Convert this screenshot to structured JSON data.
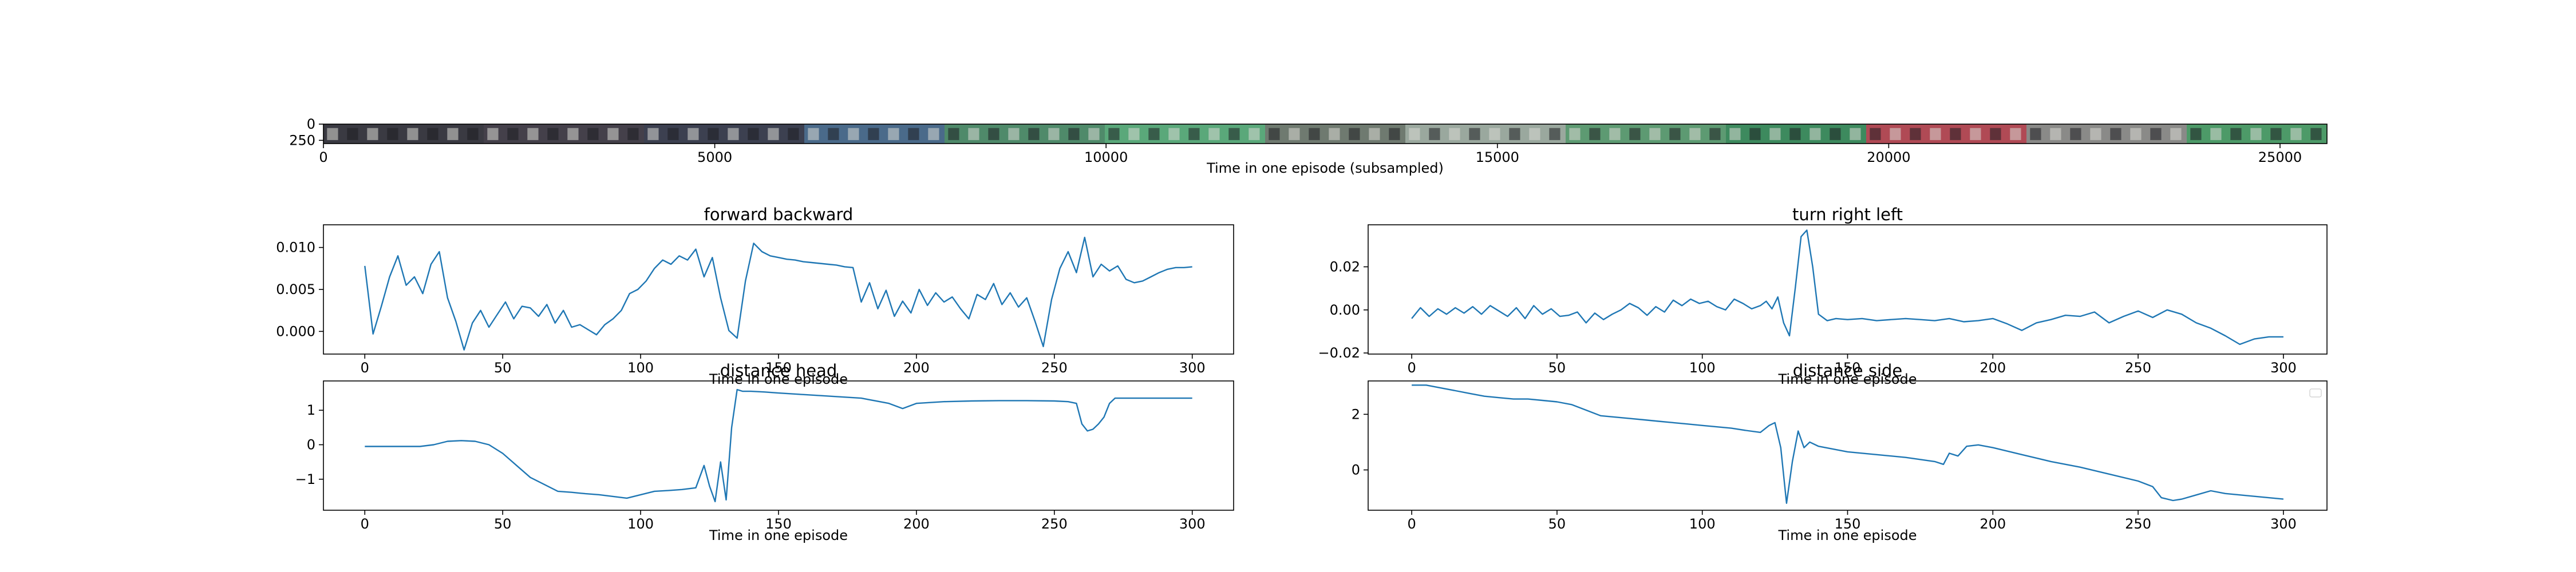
{
  "figure": {
    "background": "#ffffff",
    "line_color": "#1f77b4"
  },
  "chart_data": [
    {
      "type": "image-strip",
      "title": "",
      "xlabel": "Time in one episode (subsampled)",
      "ylabel": "",
      "xlim": [
        0,
        25600
      ],
      "ylim": [
        300,
        0
      ],
      "xticks": [
        0,
        5000,
        10000,
        15000,
        20000,
        25000
      ],
      "yticks": [
        0,
        250
      ],
      "frame_count": 100,
      "frame_colors": [
        "#3a3a42",
        "#44404a",
        "#3c4050",
        "#4a6a8a",
        "#4f8a6a",
        "#5aa87a",
        "#6f7a70",
        "#9aa89e",
        "#5d9a72",
        "#3d8a5e",
        "#b04a55",
        "#8a8a88",
        "#4d9a68"
      ]
    },
    {
      "type": "line",
      "title": "forward backward",
      "xlabel": "Time in one episode",
      "ylabel": "",
      "xlim": [
        -15,
        315
      ],
      "ylim": [
        -0.0027,
        0.0127
      ],
      "xticks": [
        0,
        50,
        100,
        150,
        200,
        250,
        300
      ],
      "yticks": [
        0.0,
        0.005,
        0.01
      ],
      "ytick_labels": [
        "0.000",
        "0.005",
        "0.010"
      ],
      "series": [
        {
          "x": [
            0,
            3,
            6,
            9,
            12,
            15,
            18,
            21,
            24,
            27,
            30,
            33,
            36,
            39,
            42,
            45,
            48,
            51,
            54,
            57,
            60,
            63,
            66,
            69,
            72,
            75,
            78,
            81,
            84,
            87,
            90,
            93,
            96,
            99,
            102,
            105,
            108,
            111,
            114,
            117,
            120,
            123,
            126,
            129,
            132,
            135,
            138,
            141,
            144,
            147,
            150,
            153,
            156,
            159,
            162,
            165,
            168,
            171,
            174,
            177,
            180,
            183,
            186,
            189,
            192,
            195,
            198,
            201,
            204,
            207,
            210,
            213,
            216,
            219,
            222,
            225,
            228,
            231,
            234,
            237,
            240,
            243,
            246,
            249,
            252,
            255,
            258,
            261,
            264,
            267,
            270,
            273,
            276,
            279,
            282,
            285,
            288,
            291,
            294,
            297,
            300
          ],
          "y": [
            0.0078,
            -0.0003,
            0.003,
            0.0065,
            0.009,
            0.0055,
            0.0065,
            0.0045,
            0.008,
            0.0095,
            0.004,
            0.0012,
            -0.0022,
            0.001,
            0.0025,
            0.0005,
            0.002,
            0.0035,
            0.0015,
            0.003,
            0.0028,
            0.0018,
            0.0032,
            0.001,
            0.0025,
            0.0005,
            0.0008,
            0.0002,
            -0.0004,
            0.0008,
            0.0015,
            0.0025,
            0.0045,
            0.005,
            0.006,
            0.0075,
            0.0085,
            0.008,
            0.009,
            0.0085,
            0.0098,
            0.0065,
            0.0088,
            0.004,
            0.0001,
            -0.0008,
            0.006,
            0.0105,
            0.0095,
            0.009,
            0.0088,
            0.0086,
            0.0085,
            0.0083,
            0.0082,
            0.0081,
            0.008,
            0.0079,
            0.0077,
            0.0076,
            0.0035,
            0.0058,
            0.0027,
            0.0049,
            0.0018,
            0.0036,
            0.0022,
            0.005,
            0.0031,
            0.0046,
            0.0035,
            0.0041,
            0.0027,
            0.0015,
            0.0044,
            0.0038,
            0.0057,
            0.0032,
            0.0046,
            0.0029,
            0.004,
            0.0012,
            -0.0018,
            0.0038,
            0.0075,
            0.0095,
            0.007,
            0.0112,
            0.0065,
            0.008,
            0.0072,
            0.0078,
            0.0062,
            0.0058,
            0.006,
            0.0065,
            0.007,
            0.0074,
            0.0076,
            0.0076,
            0.0077
          ]
        }
      ]
    },
    {
      "type": "line",
      "title": "turn right left",
      "xlabel": "Time in one episode",
      "ylabel": "",
      "xlim": [
        -15,
        315
      ],
      "ylim": [
        -0.0205,
        0.0395
      ],
      "xticks": [
        0,
        50,
        100,
        150,
        200,
        250,
        300
      ],
      "yticks": [
        -0.02,
        0.0,
        0.02
      ],
      "ytick_labels": [
        "−0.02",
        "0.00",
        "0.02"
      ],
      "series": [
        {
          "x": [
            0,
            3,
            6,
            9,
            12,
            15,
            18,
            21,
            24,
            27,
            30,
            33,
            36,
            39,
            42,
            45,
            48,
            51,
            54,
            57,
            60,
            63,
            66,
            69,
            72,
            75,
            78,
            81,
            84,
            87,
            90,
            93,
            96,
            99,
            102,
            105,
            108,
            111,
            114,
            117,
            120,
            122,
            124,
            126,
            128,
            130,
            132,
            134,
            136,
            138,
            140,
            143,
            146,
            150,
            155,
            160,
            165,
            170,
            175,
            180,
            185,
            190,
            195,
            200,
            205,
            210,
            215,
            220,
            225,
            230,
            235,
            240,
            245,
            250,
            255,
            260,
            265,
            270,
            275,
            280,
            285,
            290,
            295,
            300
          ],
          "y": [
            -0.004,
            0.001,
            -0.003,
            0.0005,
            -0.002,
            0.001,
            -0.0015,
            0.0015,
            -0.002,
            0.002,
            -0.0005,
            -0.003,
            0.001,
            -0.004,
            0.002,
            -0.002,
            0.0005,
            -0.003,
            -0.0025,
            -0.001,
            -0.006,
            -0.0015,
            -0.0045,
            -0.002,
            0.0,
            0.003,
            0.001,
            -0.0025,
            0.0015,
            -0.001,
            0.0045,
            0.002,
            0.005,
            0.003,
            0.004,
            0.0015,
            0.0,
            0.005,
            0.003,
            0.0005,
            0.002,
            0.004,
            0.0005,
            0.006,
            -0.006,
            -0.012,
            0.01,
            0.034,
            0.037,
            0.02,
            -0.002,
            -0.005,
            -0.004,
            -0.0045,
            -0.004,
            -0.005,
            -0.0045,
            -0.004,
            -0.0045,
            -0.005,
            -0.004,
            -0.0055,
            -0.005,
            -0.004,
            -0.0065,
            -0.0095,
            -0.006,
            -0.0045,
            -0.0025,
            -0.003,
            -0.001,
            -0.006,
            -0.003,
            -0.0005,
            -0.0035,
            0.0,
            -0.002,
            -0.006,
            -0.0085,
            -0.012,
            -0.016,
            -0.0135,
            -0.0125,
            -0.0125
          ]
        }
      ]
    },
    {
      "type": "line",
      "title": "distance head",
      "xlabel": "Time in one episode",
      "ylabel": "",
      "xlim": [
        -15,
        315
      ],
      "ylim": [
        -1.9,
        1.85
      ],
      "xticks": [
        0,
        50,
        100,
        150,
        200,
        250,
        300
      ],
      "yticks": [
        -1,
        0,
        1
      ],
      "ytick_labels": [
        "−1",
        "0",
        "1"
      ],
      "series": [
        {
          "x": [
            0,
            10,
            20,
            25,
            30,
            35,
            40,
            45,
            50,
            55,
            60,
            65,
            70,
            75,
            80,
            85,
            90,
            95,
            100,
            105,
            110,
            115,
            120,
            123,
            125,
            127,
            129,
            131,
            133,
            135,
            137,
            140,
            145,
            150,
            160,
            170,
            180,
            190,
            195,
            200,
            210,
            220,
            230,
            240,
            250,
            255,
            258,
            260,
            262,
            264,
            266,
            268,
            270,
            272,
            275,
            280,
            290,
            300
          ],
          "y": [
            -0.05,
            -0.05,
            -0.05,
            0.0,
            0.1,
            0.12,
            0.1,
            0.0,
            -0.25,
            -0.6,
            -0.95,
            -1.15,
            -1.35,
            -1.38,
            -1.42,
            -1.45,
            -1.5,
            -1.55,
            -1.45,
            -1.35,
            -1.33,
            -1.3,
            -1.25,
            -0.6,
            -1.2,
            -1.65,
            -0.5,
            -1.6,
            0.5,
            1.6,
            1.55,
            1.55,
            1.53,
            1.5,
            1.45,
            1.4,
            1.35,
            1.2,
            1.05,
            1.2,
            1.25,
            1.27,
            1.28,
            1.28,
            1.27,
            1.25,
            1.2,
            0.6,
            0.4,
            0.45,
            0.6,
            0.8,
            1.2,
            1.35,
            1.35,
            1.35,
            1.35,
            1.35
          ]
        }
      ]
    },
    {
      "type": "line",
      "title": "distance side",
      "xlabel": "Time in one episode",
      "ylabel": "",
      "xlim": [
        -15,
        315
      ],
      "ylim": [
        -1.45,
        3.2
      ],
      "xticks": [
        0,
        50,
        100,
        150,
        200,
        250,
        300
      ],
      "yticks": [
        0,
        2
      ],
      "ytick_labels": [
        "0",
        "2"
      ],
      "series": [
        {
          "x": [
            0,
            5,
            10,
            15,
            20,
            25,
            30,
            35,
            40,
            45,
            50,
            55,
            60,
            65,
            70,
            75,
            80,
            85,
            90,
            95,
            100,
            105,
            110,
            115,
            120,
            123,
            125,
            127,
            129,
            131,
            133,
            135,
            137,
            140,
            150,
            160,
            170,
            180,
            183,
            185,
            188,
            191,
            195,
            200,
            210,
            220,
            230,
            240,
            250,
            255,
            258,
            262,
            265,
            270,
            275,
            280,
            290,
            300
          ],
          "y": [
            3.05,
            3.05,
            2.95,
            2.85,
            2.75,
            2.65,
            2.6,
            2.55,
            2.55,
            2.5,
            2.45,
            2.35,
            2.15,
            1.95,
            1.9,
            1.85,
            1.8,
            1.75,
            1.7,
            1.65,
            1.6,
            1.55,
            1.5,
            1.42,
            1.35,
            1.6,
            1.7,
            0.8,
            -1.2,
            0.3,
            1.4,
            0.8,
            1.0,
            0.85,
            0.65,
            0.55,
            0.45,
            0.3,
            0.2,
            0.6,
            0.5,
            0.85,
            0.9,
            0.8,
            0.55,
            0.3,
            0.1,
            -0.15,
            -0.4,
            -0.6,
            -1.0,
            -1.1,
            -1.05,
            -0.9,
            -0.75,
            -0.85,
            -0.95,
            -1.05
          ]
        }
      ]
    }
  ]
}
